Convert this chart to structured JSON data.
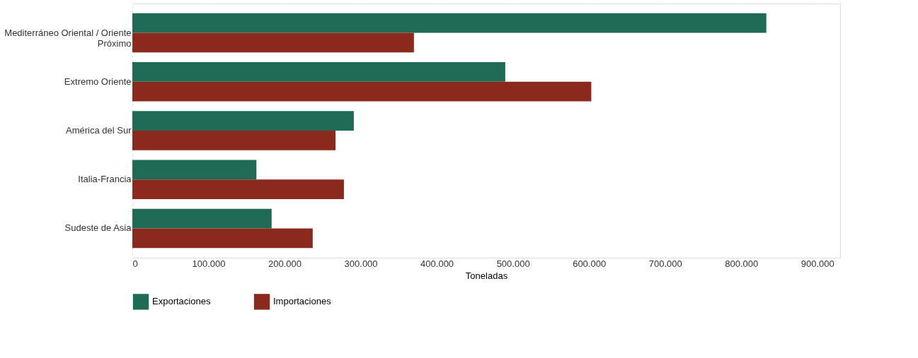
{
  "chart_data": {
    "type": "bar",
    "orientation": "horizontal",
    "xlabel": "Toneladas",
    "categories": [
      "Mediterráneo Oriental / Oriente Próximo",
      "Extremo Oriente",
      "América del Sur",
      "Italia-Francia",
      "Sudeste de Asia"
    ],
    "series": [
      {
        "name": "Exportaciones",
        "color": "#1f6b55",
        "values": [
          833000,
          490000,
          291000,
          163000,
          183000
        ]
      },
      {
        "name": "Importaciones",
        "color": "#8a2a1c",
        "values": [
          370000,
          603000,
          267000,
          278000,
          237000
        ]
      }
    ],
    "xlim": [
      0,
      930000
    ],
    "xticks": [
      0,
      {
        "value": 100000,
        "label": "100.000"
      },
      {
        "value": 200000,
        "label": "200.000"
      },
      {
        "value": 300000,
        "label": "300.000"
      },
      {
        "value": 400000,
        "label": "400.000"
      },
      {
        "value": 500000,
        "label": "500.000"
      },
      {
        "value": 600000,
        "label": "600.000"
      },
      {
        "value": 700000,
        "label": "700.000"
      },
      {
        "value": 800000,
        "label": "800.000"
      },
      {
        "value": 900000,
        "label": "900.000"
      }
    ],
    "grid": "x",
    "legend": "bottom"
  }
}
